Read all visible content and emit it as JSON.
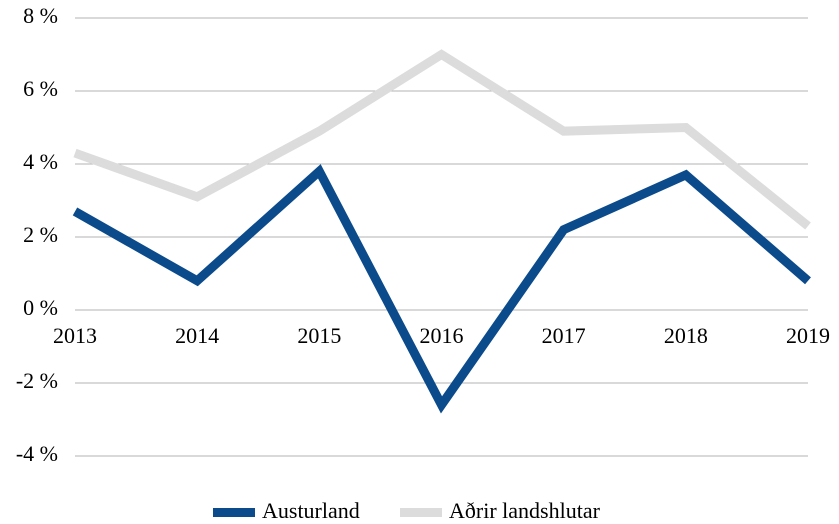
{
  "chart_data": {
    "type": "line",
    "categories": [
      "2013",
      "2014",
      "2015",
      "2016",
      "2017",
      "2018",
      "2019"
    ],
    "series": [
      {
        "name": "Austurland",
        "color": "#0b4a8b",
        "values": [
          2.7,
          0.8,
          3.8,
          -2.6,
          2.2,
          3.7,
          0.8
        ]
      },
      {
        "name": "Aðrir landshlutar",
        "color": "#dcdcdc",
        "values": [
          4.3,
          3.1,
          4.9,
          7.0,
          4.9,
          5.0,
          2.3
        ]
      }
    ],
    "ylim": [
      -4,
      8
    ],
    "yticks": [
      {
        "value": -4,
        "label": "-4 %"
      },
      {
        "value": -2,
        "label": "-2 %"
      },
      {
        "value": 0,
        "label": "0 %"
      },
      {
        "value": 2,
        "label": "2 %"
      },
      {
        "value": 4,
        "label": "4 %"
      },
      {
        "value": 6,
        "label": "6 %"
      },
      {
        "value": 8,
        "label": "8 %"
      }
    ],
    "grid": true,
    "legend": "bottom"
  }
}
